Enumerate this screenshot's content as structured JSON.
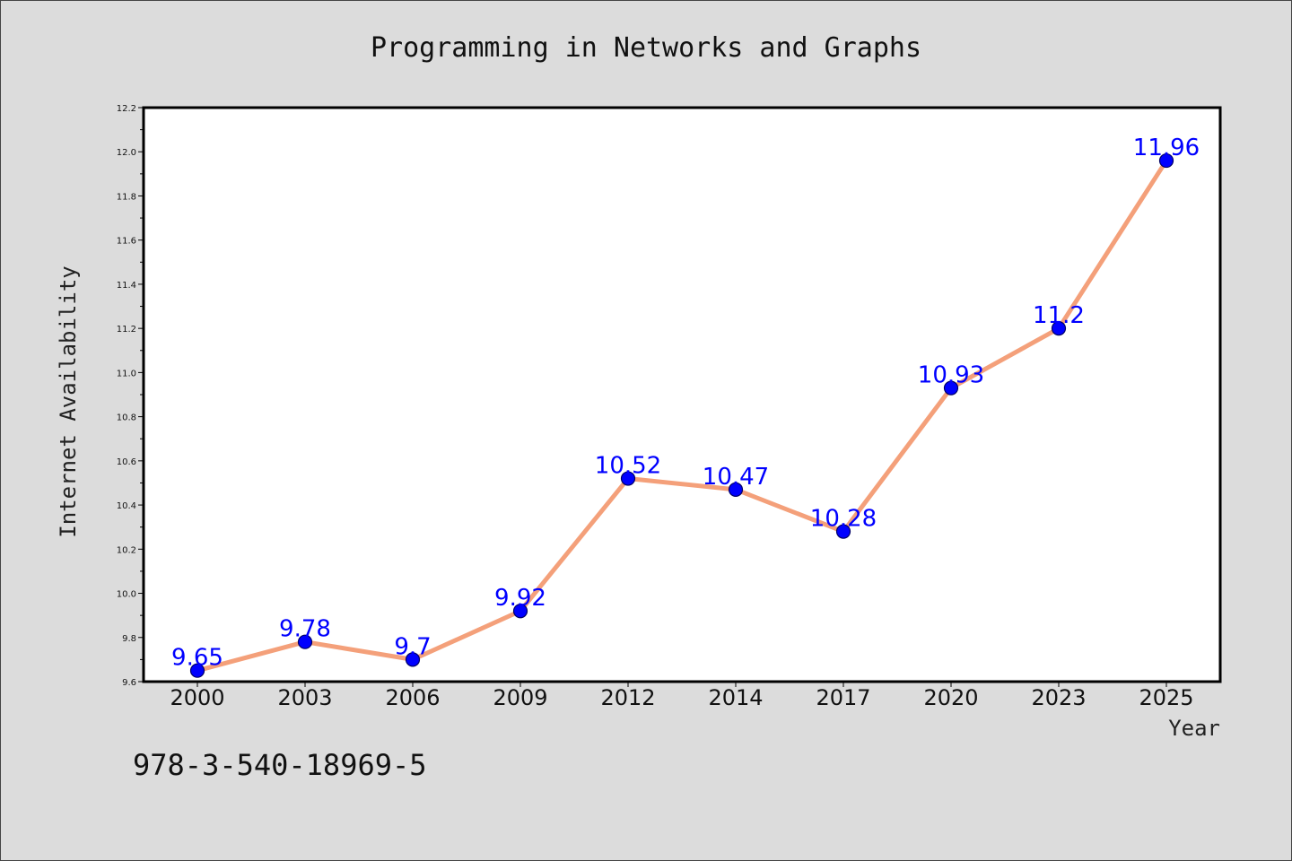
{
  "isbn": "978-3-540-18969-5",
  "colors": {
    "background": "#dcdcdc",
    "plot_background": "#ffffff",
    "line": "#f4a07a",
    "marker": "#0000ff",
    "marker_edge": "#000066",
    "data_label": "#0000ff"
  },
  "chart_data": {
    "type": "line",
    "title": "Programming in Networks and Graphs",
    "xlabel": "Year",
    "ylabel": "Internet Availability",
    "categories": [
      "2000",
      "2003",
      "2006",
      "2009",
      "2012",
      "2014",
      "2017",
      "2020",
      "2023",
      "2025"
    ],
    "series": [
      {
        "values": [
          9.65,
          9.78,
          9.7,
          9.92,
          10.52,
          10.47,
          10.28,
          10.93,
          11.2,
          11.96
        ],
        "labels": [
          "9.65",
          "9.78",
          "9.7",
          "9.92",
          "10.52",
          "10.47",
          "10.28",
          "10.93",
          "11.2",
          "11.96"
        ]
      }
    ],
    "ylim": [
      9.6,
      12.2
    ],
    "yticks": [
      "9.6",
      "9.8",
      "10.0",
      "10.2",
      "10.4",
      "10.6",
      "10.8",
      "11.0",
      "11.2",
      "11.4",
      "11.6",
      "11.8",
      "12.0",
      "12.2"
    ],
    "grid": false,
    "legend": "none"
  }
}
